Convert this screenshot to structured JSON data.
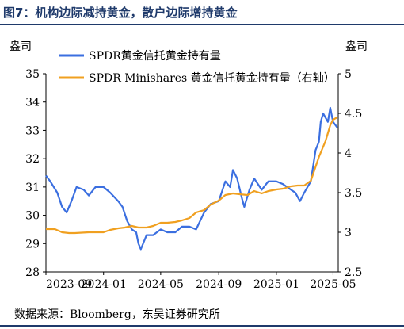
{
  "header": {
    "title": "图7：机构边际减持黄金，散户边际增持黄金"
  },
  "footer": {
    "source": "数据来源：Bloomberg，东吴证券研究所"
  },
  "chart_data": {
    "type": "line",
    "left_unit": "盎司",
    "right_unit": "盎司",
    "x_tick_labels": [
      "2023-09",
      "2024-01",
      "2024-05",
      "2024-09",
      "2025-01",
      "2025-05"
    ],
    "y_left_ticks": [
      "28",
      "29",
      "30",
      "31",
      "32",
      "33",
      "34",
      "35"
    ],
    "y_right_ticks": [
      "2.5",
      "3",
      "3.5",
      "4",
      "4.5",
      "5"
    ],
    "ylim_left": [
      28,
      35
    ],
    "ylim_right": [
      2.5,
      5
    ],
    "xlim": [
      "2023-09-01",
      "2025-05-12"
    ],
    "legend_position": "top-left",
    "series": [
      {
        "name": "SPDR黄金信托黄金持有量",
        "axis": "left",
        "color": "#3b6fe0",
        "x": [
          "2023-09-01",
          "2023-09-10",
          "2023-09-25",
          "2023-10-05",
          "2023-10-15",
          "2023-10-25",
          "2023-11-05",
          "2023-11-20",
          "2023-12-01",
          "2023-12-15",
          "2024-01-01",
          "2024-01-15",
          "2024-02-01",
          "2024-02-10",
          "2024-02-20",
          "2024-03-01",
          "2024-03-10",
          "2024-03-15",
          "2024-03-20",
          "2024-04-01",
          "2024-04-15",
          "2024-05-01",
          "2024-05-15",
          "2024-06-01",
          "2024-06-15",
          "2024-07-01",
          "2024-07-15",
          "2024-08-01",
          "2024-08-15",
          "2024-09-01",
          "2024-09-15",
          "2024-09-25",
          "2024-10-01",
          "2024-10-10",
          "2024-10-20",
          "2024-10-25",
          "2024-11-05",
          "2024-11-15",
          "2024-12-01",
          "2024-12-15",
          "2025-01-01",
          "2025-01-15",
          "2025-02-01",
          "2025-02-10",
          "2025-02-20",
          "2025-03-01",
          "2025-03-15",
          "2025-03-25",
          "2025-04-01",
          "2025-04-05",
          "2025-04-10",
          "2025-04-20",
          "2025-04-25",
          "2025-05-01",
          "2025-05-10"
        ],
        "values": [
          31.4,
          31.2,
          30.8,
          30.3,
          30.1,
          30.5,
          31.0,
          30.9,
          30.7,
          31.0,
          31.0,
          30.8,
          30.5,
          30.3,
          29.8,
          29.5,
          29.4,
          29.0,
          28.8,
          29.3,
          29.3,
          29.5,
          29.4,
          29.4,
          29.6,
          29.6,
          29.5,
          30.1,
          30.4,
          30.5,
          31.2,
          31.0,
          31.6,
          31.3,
          30.6,
          30.3,
          30.9,
          31.3,
          30.9,
          31.2,
          31.2,
          31.1,
          30.9,
          30.8,
          30.5,
          30.8,
          31.2,
          32.3,
          32.6,
          33.3,
          33.6,
          33.3,
          33.8,
          33.3,
          33.1
        ]
      },
      {
        "name": "SPDR Minishares 黄金信托黄金持有量（右轴）",
        "axis": "right",
        "color": "#f0a020",
        "x": [
          "2023-09-01",
          "2023-09-20",
          "2023-10-05",
          "2023-10-20",
          "2023-11-01",
          "2023-12-01",
          "2024-01-01",
          "2024-01-15",
          "2024-02-01",
          "2024-02-15",
          "2024-03-01",
          "2024-03-15",
          "2024-04-01",
          "2024-04-15",
          "2024-05-01",
          "2024-05-15",
          "2024-06-01",
          "2024-06-15",
          "2024-07-01",
          "2024-07-15",
          "2024-08-01",
          "2024-08-15",
          "2024-09-01",
          "2024-09-15",
          "2024-10-01",
          "2024-10-15",
          "2024-11-01",
          "2024-11-15",
          "2024-12-01",
          "2024-12-15",
          "2025-01-01",
          "2025-01-15",
          "2025-02-01",
          "2025-02-15",
          "2025-03-01",
          "2025-03-15",
          "2025-04-01",
          "2025-04-15",
          "2025-04-25",
          "2025-05-01",
          "2025-05-10"
        ],
        "values": [
          3.04,
          3.04,
          3.0,
          2.99,
          2.99,
          3.0,
          3.0,
          3.03,
          3.05,
          3.06,
          3.08,
          3.06,
          3.06,
          3.08,
          3.12,
          3.12,
          3.13,
          3.15,
          3.18,
          3.25,
          3.28,
          3.35,
          3.4,
          3.47,
          3.49,
          3.48,
          3.47,
          3.52,
          3.49,
          3.52,
          3.54,
          3.55,
          3.58,
          3.59,
          3.59,
          3.65,
          3.95,
          4.15,
          4.35,
          4.42,
          4.45
        ]
      }
    ]
  }
}
